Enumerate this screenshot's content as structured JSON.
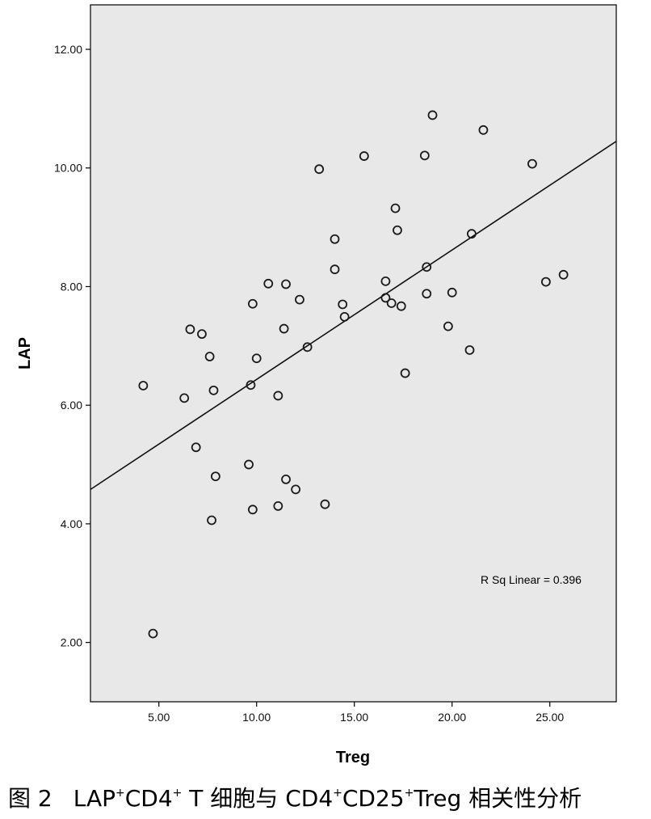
{
  "chart_data": {
    "type": "scatter",
    "xlabel": "Treg",
    "ylabel": "LAP",
    "xlim": [
      1.5,
      28.4
    ],
    "ylim": [
      1.0,
      12.75
    ],
    "x_ticks": [
      "5.00",
      "10.00",
      "15.00",
      "20.00",
      "25.00"
    ],
    "y_ticks": [
      "2.00",
      "4.00",
      "6.00",
      "8.00",
      "10.00",
      "12.00"
    ],
    "x_tick_values": [
      5,
      10,
      15,
      20,
      25
    ],
    "y_tick_values": [
      2,
      4,
      6,
      8,
      10,
      12
    ],
    "annotation": "R Sq Linear = 0.396",
    "fit_line": {
      "x": [
        1.5,
        28.4
      ],
      "y": [
        4.58,
        10.45
      ]
    },
    "grid": false,
    "background": "#e8e8e8",
    "marker_color": "#1a1a1a",
    "points": [
      {
        "x": 4.2,
        "y": 6.33
      },
      {
        "x": 4.7,
        "y": 2.15
      },
      {
        "x": 6.3,
        "y": 6.12
      },
      {
        "x": 6.6,
        "y": 7.28
      },
      {
        "x": 6.9,
        "y": 5.29
      },
      {
        "x": 7.2,
        "y": 7.2
      },
      {
        "x": 7.6,
        "y": 6.82
      },
      {
        "x": 7.7,
        "y": 4.06
      },
      {
        "x": 7.8,
        "y": 6.25
      },
      {
        "x": 7.9,
        "y": 4.8
      },
      {
        "x": 9.6,
        "y": 5.0
      },
      {
        "x": 9.7,
        "y": 6.34
      },
      {
        "x": 9.8,
        "y": 7.71
      },
      {
        "x": 9.8,
        "y": 4.24
      },
      {
        "x": 10.0,
        "y": 6.79
      },
      {
        "x": 10.6,
        "y": 8.05
      },
      {
        "x": 11.1,
        "y": 6.16
      },
      {
        "x": 11.1,
        "y": 4.3
      },
      {
        "x": 11.4,
        "y": 7.29
      },
      {
        "x": 11.5,
        "y": 8.04
      },
      {
        "x": 11.5,
        "y": 4.75
      },
      {
        "x": 12.0,
        "y": 4.58
      },
      {
        "x": 12.2,
        "y": 7.78
      },
      {
        "x": 12.6,
        "y": 6.98
      },
      {
        "x": 13.2,
        "y": 9.98
      },
      {
        "x": 13.5,
        "y": 4.33
      },
      {
        "x": 14.0,
        "y": 8.29
      },
      {
        "x": 14.0,
        "y": 8.8
      },
      {
        "x": 14.4,
        "y": 7.7
      },
      {
        "x": 14.5,
        "y": 7.49
      },
      {
        "x": 15.5,
        "y": 10.2
      },
      {
        "x": 16.6,
        "y": 8.09
      },
      {
        "x": 16.6,
        "y": 7.81
      },
      {
        "x": 16.9,
        "y": 7.72
      },
      {
        "x": 17.1,
        "y": 9.32
      },
      {
        "x": 17.2,
        "y": 8.95
      },
      {
        "x": 17.4,
        "y": 7.67
      },
      {
        "x": 17.6,
        "y": 6.54
      },
      {
        "x": 18.6,
        "y": 10.21
      },
      {
        "x": 18.7,
        "y": 8.33
      },
      {
        "x": 18.7,
        "y": 7.88
      },
      {
        "x": 19.0,
        "y": 10.89
      },
      {
        "x": 19.8,
        "y": 7.33
      },
      {
        "x": 20.0,
        "y": 7.9
      },
      {
        "x": 20.9,
        "y": 6.93
      },
      {
        "x": 21.0,
        "y": 8.89
      },
      {
        "x": 21.6,
        "y": 10.64
      },
      {
        "x": 24.1,
        "y": 10.07
      },
      {
        "x": 24.8,
        "y": 8.08
      },
      {
        "x": 25.7,
        "y": 8.2
      }
    ]
  },
  "caption": {
    "fig_label": "图 2",
    "p1": "LAP",
    "sup1": "+",
    "p2": "CD4",
    "sup2": "+",
    "p3": " T 细胞与 CD4",
    "sup3": "+",
    "p4": "CD25",
    "sup4": "+",
    "p5": "Treg 相关性分析"
  }
}
